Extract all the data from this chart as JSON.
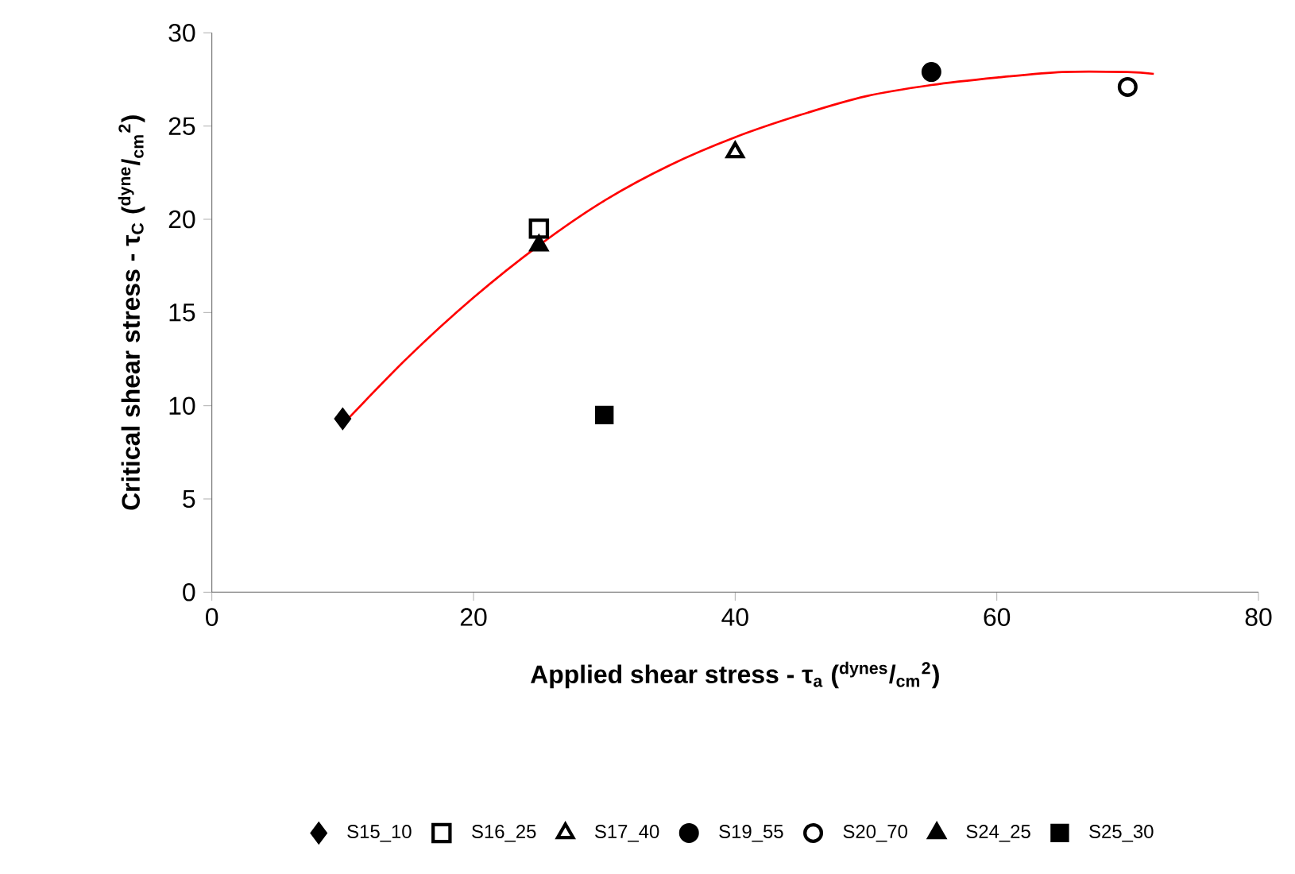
{
  "chart_data": {
    "type": "scatter",
    "xlabel": "Applied shear stress - τ$_{a}$ ($^{dynes}$/$_{cm}$$^{2}$)",
    "ylabel": "Critical shear stress - τ$_{C}$ ($^{dyne}$/$_{cm}$$^{2}$)",
    "xlim": [
      0,
      80
    ],
    "xticks": [
      0,
      20,
      40,
      60,
      80
    ],
    "ylim": [
      0,
      30
    ],
    "yticks": [
      0,
      5,
      10,
      15,
      20,
      25,
      30
    ],
    "grid": false,
    "legend": "bottom",
    "series": [
      {
        "name": "S15_10",
        "color": "#000000",
        "marker": "diamond",
        "x": [
          10
        ],
        "values": [
          9.3
        ]
      },
      {
        "name": "S16_25",
        "color": "#000000",
        "marker": "square-open",
        "x": [
          25
        ],
        "values": [
          19.5
        ]
      },
      {
        "name": "S17_40",
        "color": "#000000",
        "marker": "triangle-open",
        "x": [
          40
        ],
        "values": [
          23.6
        ]
      },
      {
        "name": "S19_55",
        "color": "#000000",
        "marker": "circle",
        "x": [
          55
        ],
        "values": [
          27.9
        ]
      },
      {
        "name": "S20_70",
        "color": "#000000",
        "marker": "circle-open",
        "x": [
          70
        ],
        "values": [
          27.1
        ]
      },
      {
        "name": "S24_25",
        "color": "#000000",
        "marker": "triangle",
        "x": [
          25
        ],
        "values": [
          18.6
        ]
      },
      {
        "name": "S25_30",
        "color": "#000000",
        "marker": "square",
        "x": [
          30
        ],
        "values": [
          9.5
        ]
      },
      {
        "type": "line",
        "color": "#ff0000",
        "marker": "none",
        "line_style": "solid",
        "x": [
          10,
          15,
          20,
          25,
          30,
          35,
          40,
          45,
          50,
          55,
          60,
          65,
          70,
          72
        ],
        "values": [
          9.0,
          12.6,
          15.8,
          18.6,
          21.0,
          22.9,
          24.4,
          25.6,
          26.6,
          27.2,
          27.6,
          27.9,
          27.9,
          27.8
        ]
      }
    ]
  }
}
